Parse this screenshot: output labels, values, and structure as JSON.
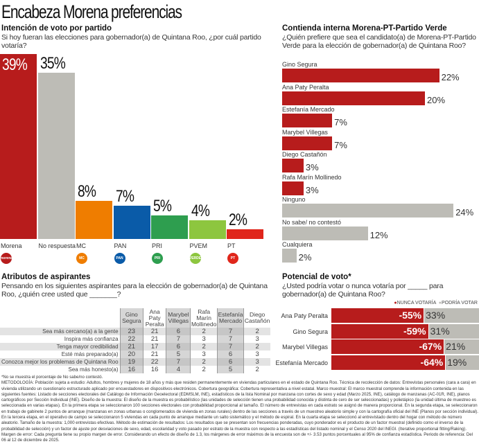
{
  "title": "Encabeza Morena preferencias",
  "chart_data": [
    {
      "type": "bar",
      "title": "Intención de voto por partido",
      "subtitle": "Si hoy fueran las elecciones para gobernador(a) de Quintana Roo, ¿por cuál partido votaría?",
      "categories": [
        "Morena",
        "No respuesta",
        "MC",
        "PAN",
        "PRI",
        "PVEM",
        "PT"
      ],
      "values": [
        39,
        35,
        8,
        7,
        5,
        4,
        2
      ],
      "labels": [
        "39%",
        "35%",
        "8%",
        "7%",
        "5%",
        "4%",
        "2%"
      ],
      "colors": [
        "#b71c1c",
        "#bdbcb6",
        "#ef7d00",
        "#0a5ba8",
        "#2e9e4f",
        "#8dc63f",
        "#e0261b"
      ],
      "logos": [
        "morena",
        "MC",
        "PAN",
        "PRI",
        "VERDE",
        "PT"
      ]
    },
    {
      "type": "bar",
      "orientation": "horizontal",
      "title": "Contienda interna Morena-PT-Partido Verde",
      "subtitle": "¿Quién prefiere que sea el candidato(a) de Morena-PT-Partido Verde para la elección de gobernador(a) de Quintana Roo?",
      "categories": [
        "Gino Segura",
        "Ana Paty Peralta",
        "Estefanía Mercado",
        "Marybel Villegas",
        "Diego Castañón",
        "Rafa Marín Mollinedo",
        "Ninguno",
        "No sabe/ no contestó",
        "Cualquiera"
      ],
      "values": [
        22,
        20,
        7,
        7,
        3,
        3,
        24,
        12,
        2
      ],
      "labels": [
        "22%",
        "20%",
        "7%",
        "7%",
        "3%",
        "3%",
        "24%",
        "12%",
        "2%"
      ],
      "colors": [
        "#b71c1c",
        "#b71c1c",
        "#b71c1c",
        "#b71c1c",
        "#b71c1c",
        "#b71c1c",
        "#bdbcb6",
        "#bdbcb6",
        "#bdbcb6"
      ]
    },
    {
      "type": "table",
      "title": "Atributos de aspirantes",
      "subtitle": "Pensando en los siguientes aspirantes para la elección de gobernador(a) de Quintana Roo, ¿quién cree usted que _______?",
      "columns": [
        "Gino Segura",
        "Ana Paty Peralta",
        "Marybel Villegas",
        "Rafa Marín Mollinedo",
        "Estefanía Mercado",
        "Diego Castañón"
      ],
      "rows": [
        {
          "label": "Sea más cercano(a) a la gente",
          "values": [
            23,
            21,
            6,
            2,
            7,
            2
          ]
        },
        {
          "label": "Inspira más confianza",
          "values": [
            22,
            21,
            7,
            3,
            7,
            3
          ]
        },
        {
          "label": "Tenga mayor credibilidad",
          "values": [
            21,
            17,
            6,
            2,
            7,
            2
          ]
        },
        {
          "label": "Esté más preparado(a)",
          "values": [
            20,
            21,
            5,
            3,
            6,
            3
          ]
        },
        {
          "label": "Conozca mejor los problemas de Quintana Roo",
          "values": [
            19,
            22,
            7,
            2,
            6,
            3
          ]
        },
        {
          "label": "Sea más honesto(a)",
          "values": [
            16,
            16,
            4,
            2,
            5,
            2
          ]
        }
      ]
    },
    {
      "type": "bar",
      "orientation": "horizontal",
      "stacked": true,
      "title": "Potencial de voto*",
      "subtitle": "¿Usted podría votar o nunca votaría por _____ para gobernador(a) de Quintana Roo?",
      "legend": [
        "NUNCA VOTARÍA",
        "PODRÍA VOTAR"
      ],
      "legend_position": "top-right",
      "categories": [
        "Ana Paty Peralta",
        "Gino Segura",
        "Marybel Villegas",
        "Estefanía Mercado"
      ],
      "series": [
        {
          "name": "NUNCA VOTARÍA",
          "values": [
            -55,
            -59,
            -67,
            -64
          ],
          "labels": [
            "-55%",
            "-59%",
            "-67%",
            "-64%"
          ],
          "color": "#b71c1c"
        },
        {
          "name": "PODRÍA VOTAR",
          "values": [
            33,
            31,
            21,
            19
          ],
          "labels": [
            "33%",
            "31%",
            "21%",
            "19%"
          ],
          "color": "#bdbcb6"
        }
      ]
    }
  ],
  "footnote": "*No se muestra el porcentaje de No sabe/no contestó.",
  "methodology": "METODOLOGÍA: Población sujeta a estudio: Adultos, hombres y mujeres de 18 años y más que residen permanentemente en viviendas particulares en el estado de Quintana Roo. Técnica de recolección de datos: Entrevistas personales (cara a cara) en vivienda utilizando un cuestionario estructurado aplicado por encuestadores en dispositivos electrónicos. Cobertura geográfica: Cobertura representativa a nivel estatal. Marco muestral: El marco muestral comprende la información contenida en las siguientes fuentes: Listado de secciones electorales del Catálogo de Información Geoelectoral (EDMSLM, INE), estadísticos de la lista Nominal por manzana con cortes de sexo y edad (Marzo 2025, INE), catálogo de manzanas (AC-01R, INE), planos cartográficos por Sección Individual (INE). Diseño de la muestra: El diseño de la muestra es probabilístico (las unidades de selección tienen una probabilidad conocida y distinta de cero de ser seleccionadas) y polietápico (la unidad última de muestreo es seleccionada en varias etapas). En la primera etapa se seleccionaron 100 secciones electorales con probabilidad proporcional al tamaño. El número de entrevistas en cada estrato se asignó de manera proporcional. En la segunda etapa, se seleccionaron en trabajo de gabinete 2 puntos de arranque (manzanas en zonas urbanas o conglomerados de vivienda en zonas rurales) dentro de las secciones a través de un muestreo aleatorio simple y con la cartografía oficial del INE (Planos por sección individual). En la tercera etapa, en el operativo de campo se seleccionaron 5 viviendas en cada punto de arranque mediante un salto sistemático y el método de espiral. En la cuarta etapa se seleccionó al entrevistado dentro del hogar con método de número aleatorio. Tamaño de la muestra: 1,000 entrevistas efectivas. Método de estimación de resultados: Los resultados que se presentan son frecuencias ponderadas, cuyo ponderador es el producto de un factor muestral (definido como el inverso de la probabilidad de selección) y un factor de ajuste por desviaciones de sexo, edad, escolaridad y voto pasado por estrato de la muestra con respecto a las estadísticas del listado nominal y el Censo 2020 del INEGI. (Iterative proportional fitting/Raking). Margen de error: Cada pregunta tiene su propio margen de error. Considerando un efecto de diseño de 1.3, los márgenes de error máximos de la encuesta son de +/- 3.53 puntos porcentuales al 95% de confianza estadística. Periodo de referencia: Del 06 al 12 de diciembre de 2025."
}
